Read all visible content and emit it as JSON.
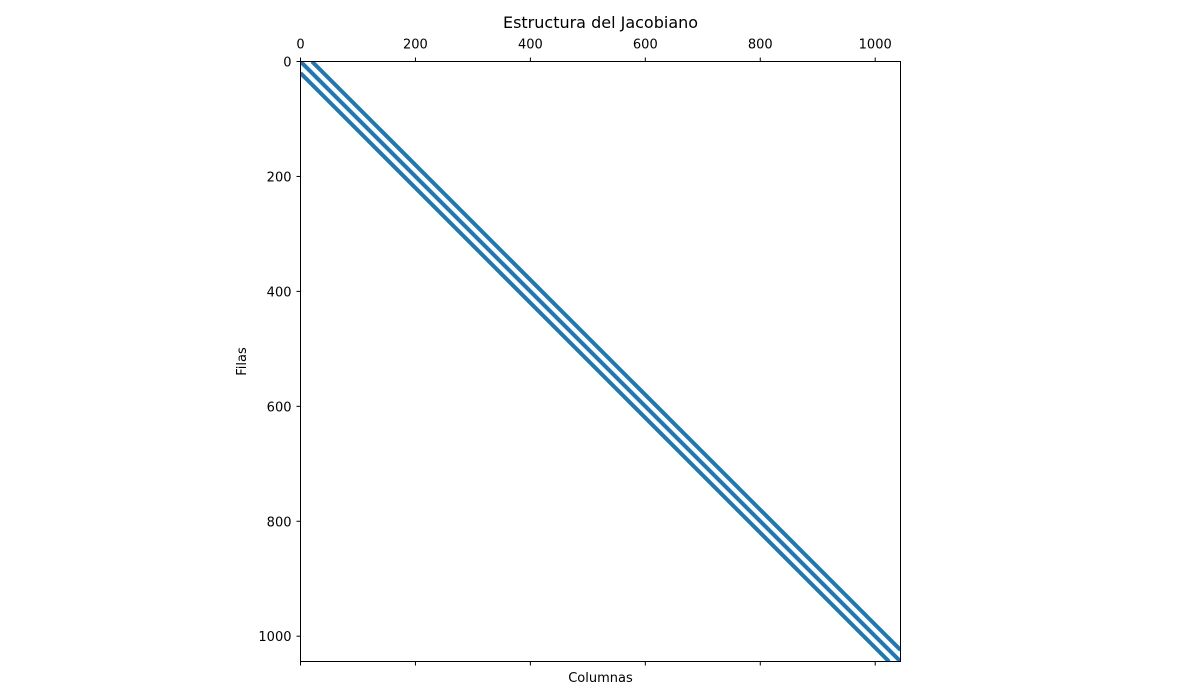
{
  "chart_data": {
    "type": "spy",
    "title": "Estructura del Jacobiano",
    "xlabel": "Columnas",
    "ylabel": "Filas",
    "n": 1044,
    "xlim": [
      0,
      1044
    ],
    "ylim": [
      1044,
      0
    ],
    "x_ticks": [
      0,
      200,
      400,
      600,
      800,
      1000
    ],
    "y_ticks": [
      0,
      200,
      400,
      600,
      800,
      1000
    ],
    "x_tick_position": "top",
    "grid": false,
    "marker_color": "#1f77b4",
    "series": [
      {
        "diagonal_offset": -20,
        "from": [
          20,
          0
        ],
        "to": [
          1044,
          1024
        ]
      },
      {
        "diagonal_offset": 0,
        "from": [
          0,
          0
        ],
        "to": [
          1044,
          1044
        ]
      },
      {
        "diagonal_offset": 20,
        "from": [
          0,
          20
        ],
        "to": [
          1024,
          1044
        ]
      }
    ]
  }
}
